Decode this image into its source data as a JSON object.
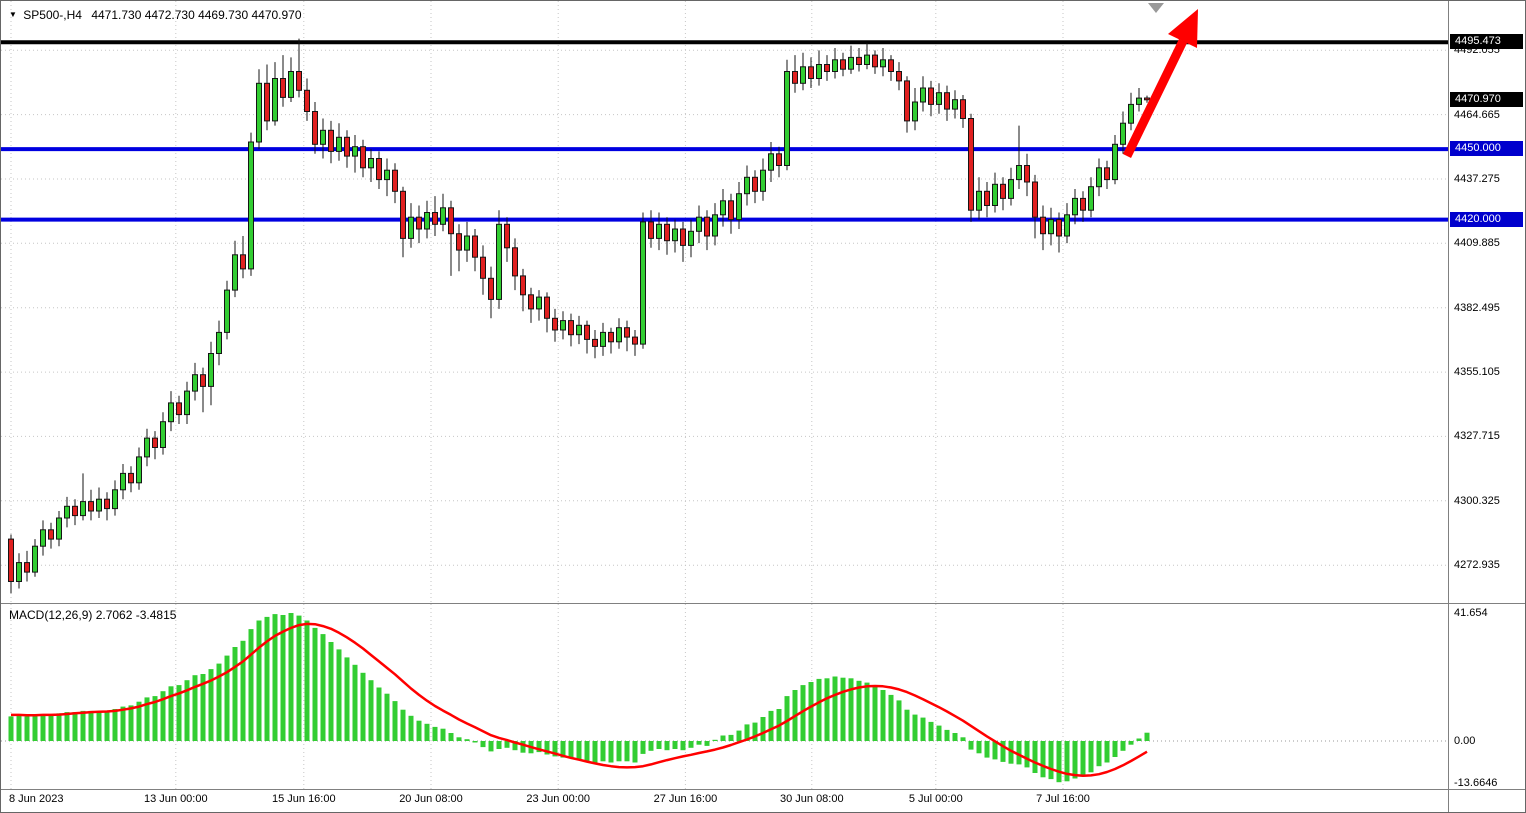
{
  "header": {
    "symbol_period": "SP500-,H4",
    "ohlc_text": "4471.730 4472.730 4469.730 4470.970",
    "open": 4471.73,
    "high": 4472.73,
    "low": 4469.73,
    "close": 4470.97
  },
  "macd_panel": {
    "label": "MACD(12,26,9) 2.7062 -3.4815",
    "indicator_name": "MACD(12,26,9)",
    "main_value": 2.7062,
    "signal_value": -3.4815
  },
  "colors": {
    "background": "#ffffff",
    "bull": "#32cd32",
    "bear": "#e02020",
    "candle_outline": "#151515",
    "grid": "#c6c6c6",
    "level_black": "#000000",
    "level_blue": "#0000e0",
    "badge_black_bg": "#000000",
    "badge_blue_bg": "#0000cd",
    "badge_text": "#ffffff",
    "histogram": "#32cd32",
    "signal": "#ff0000",
    "arrow": "#ff0000",
    "axis_text": "#000000",
    "separator": "#808080"
  },
  "chart_data": {
    "type": "candlestick",
    "symbol": "SP500-",
    "timeframe": "H4",
    "current_price": 4470.97,
    "x_axis": {
      "labels": [
        {
          "text": "8 Jun 2023",
          "index": 0
        },
        {
          "text": "13 Jun 00:00",
          "index": 20.6
        },
        {
          "text": "15 Jun 16:00",
          "index": 36.6
        },
        {
          "text": "20 Jun 08:00",
          "index": 52.5
        },
        {
          "text": "23 Jun 00:00",
          "index": 68.4
        },
        {
          "text": "27 Jun 16:00",
          "index": 84.3
        },
        {
          "text": "30 Jun 08:00",
          "index": 100.1
        },
        {
          "text": "5 Jul 00:00",
          "index": 115.6
        },
        {
          "text": "7 Jul 16:00",
          "index": 131.5
        }
      ]
    },
    "y_axis": {
      "grid_values": [
        4492.055,
        4464.665,
        4437.275,
        4409.885,
        4382.495,
        4355.105,
        4327.715,
        4300.325,
        4272.935
      ],
      "min": 4261,
      "max": 4497,
      "badges": [
        {
          "name": "price-badge-4495",
          "text": "4495.473",
          "price": 4495.473,
          "bg": "#000000"
        },
        {
          "name": "current-price-badge",
          "text": "4470.970",
          "price": 4470.97,
          "bg": "#000000"
        },
        {
          "name": "price-badge-4450",
          "text": "4450.000",
          "price": 4450.0,
          "bg": "#0000cd"
        },
        {
          "name": "price-badge-4420",
          "text": "4420.000",
          "price": 4420.0,
          "bg": "#0000cd"
        }
      ]
    },
    "levels": [
      {
        "name": "resistance-line-4495",
        "price": 4495.473,
        "color": "#000000",
        "thickness": 4
      },
      {
        "name": "support-line-4450",
        "price": 4450.0,
        "color": "#0000e0",
        "thickness": 4
      },
      {
        "name": "support-line-4420",
        "price": 4420.0,
        "color": "#0000e0",
        "thickness": 4
      }
    ],
    "annotations": [
      {
        "type": "arrow",
        "name": "trend-arrow",
        "color": "#ff0000",
        "direction": "up-right"
      },
      {
        "type": "marker",
        "name": "chart-shift-marker",
        "color": "#999999"
      }
    ],
    "candles_ohlc": [
      [
        4284,
        4286,
        4261,
        4266
      ],
      [
        4266,
        4278,
        4263,
        4274
      ],
      [
        4274,
        4279,
        4266,
        4270
      ],
      [
        4270,
        4284,
        4268,
        4281
      ],
      [
        4281,
        4292,
        4277,
        4288
      ],
      [
        4288,
        4291,
        4280,
        4284
      ],
      [
        4284,
        4296,
        4281,
        4293
      ],
      [
        4293,
        4302,
        4289,
        4298
      ],
      [
        4298,
        4301,
        4290,
        4294
      ],
      [
        4294,
        4312,
        4292,
        4300
      ],
      [
        4300,
        4305,
        4292,
        4296
      ],
      [
        4296,
        4306,
        4293,
        4301
      ],
      [
        4301,
        4304,
        4292,
        4297
      ],
      [
        4297,
        4309,
        4294,
        4305
      ],
      [
        4305,
        4316,
        4301,
        4312
      ],
      [
        4312,
        4315,
        4304,
        4308
      ],
      [
        4308,
        4323,
        4305,
        4319
      ],
      [
        4319,
        4331,
        4315,
        4327
      ],
      [
        4327,
        4330,
        4318,
        4323
      ],
      [
        4323,
        4338,
        4320,
        4334
      ],
      [
        4334,
        4347,
        4330,
        4342
      ],
      [
        4342,
        4345,
        4333,
        4337
      ],
      [
        4337,
        4351,
        4333,
        4347
      ],
      [
        4347,
        4359,
        4343,
        4354
      ],
      [
        4354,
        4357,
        4338,
        4349
      ],
      [
        4349,
        4368,
        4341,
        4363
      ],
      [
        4363,
        4377,
        4358,
        4372
      ],
      [
        4372,
        4394,
        4369,
        4390
      ],
      [
        4390,
        4411,
        4387,
        4405
      ],
      [
        4405,
        4413,
        4395,
        4399
      ],
      [
        4399,
        4457,
        4396,
        4453
      ],
      [
        4453,
        4484,
        4450,
        4478
      ],
      [
        4478,
        4486,
        4458,
        4462
      ],
      [
        4462,
        4487,
        4460,
        4480
      ],
      [
        4480,
        4490,
        4468,
        4472
      ],
      [
        4472,
        4489,
        4470,
        4483
      ],
      [
        4483,
        4497,
        4472,
        4475
      ],
      [
        4475,
        4480,
        4462,
        4466
      ],
      [
        4466,
        4470,
        4448,
        4452
      ],
      [
        4452,
        4463,
        4446,
        4458
      ],
      [
        4458,
        4462,
        4444,
        4449
      ],
      [
        4449,
        4461,
        4445,
        4455
      ],
      [
        4455,
        4458,
        4442,
        4447
      ],
      [
        4447,
        4456,
        4440,
        4451
      ],
      [
        4451,
        4454,
        4438,
        4442
      ],
      [
        4442,
        4450,
        4436,
        4446
      ],
      [
        4446,
        4449,
        4433,
        4437
      ],
      [
        4437,
        4446,
        4430,
        4441
      ],
      [
        4441,
        4444,
        4427,
        4432
      ],
      [
        4432,
        4434,
        4404,
        4412
      ],
      [
        4412,
        4427,
        4408,
        4421
      ],
      [
        4421,
        4426,
        4410,
        4416
      ],
      [
        4416,
        4428,
        4412,
        4423
      ],
      [
        4423,
        4430,
        4413,
        4418
      ],
      [
        4418,
        4431,
        4415,
        4425
      ],
      [
        4425,
        4428,
        4396,
        4414
      ],
      [
        4414,
        4418,
        4398,
        4407
      ],
      [
        4407,
        4419,
        4402,
        4413
      ],
      [
        4413,
        4416,
        4398,
        4404
      ],
      [
        4404,
        4409,
        4388,
        4395
      ],
      [
        4395,
        4400,
        4378,
        4386
      ],
      [
        4386,
        4424,
        4382,
        4418
      ],
      [
        4418,
        4421,
        4402,
        4408
      ],
      [
        4408,
        4412,
        4390,
        4396
      ],
      [
        4396,
        4399,
        4381,
        4388
      ],
      [
        4388,
        4391,
        4376,
        4382
      ],
      [
        4382,
        4390,
        4377,
        4387
      ],
      [
        4387,
        4389,
        4372,
        4378
      ],
      [
        4378,
        4382,
        4368,
        4373
      ],
      [
        4373,
        4381,
        4369,
        4377
      ],
      [
        4377,
        4380,
        4366,
        4371
      ],
      [
        4371,
        4379,
        4367,
        4375
      ],
      [
        4375,
        4377,
        4363,
        4369
      ],
      [
        4369,
        4373,
        4361,
        4366
      ],
      [
        4366,
        4376,
        4362,
        4372
      ],
      [
        4372,
        4374,
        4363,
        4368
      ],
      [
        4368,
        4378,
        4365,
        4374
      ],
      [
        4374,
        4377,
        4364,
        4370
      ],
      [
        4370,
        4373,
        4362,
        4367
      ],
      [
        4367,
        4423,
        4365,
        4419
      ],
      [
        4419,
        4424,
        4408,
        4412
      ],
      [
        4412,
        4423,
        4407,
        4418
      ],
      [
        4418,
        4421,
        4405,
        4411
      ],
      [
        4411,
        4420,
        4406,
        4416
      ],
      [
        4416,
        4419,
        4402,
        4409
      ],
      [
        4409,
        4420,
        4404,
        4415
      ],
      [
        4415,
        4426,
        4410,
        4421
      ],
      [
        4421,
        4424,
        4407,
        4413
      ],
      [
        4413,
        4427,
        4409,
        4422
      ],
      [
        4422,
        4433,
        4417,
        4428
      ],
      [
        4428,
        4431,
        4414,
        4420
      ],
      [
        4420,
        4436,
        4416,
        4431
      ],
      [
        4431,
        4443,
        4426,
        4438
      ],
      [
        4438,
        4441,
        4427,
        4432
      ],
      [
        4432,
        4446,
        4428,
        4441
      ],
      [
        4441,
        4453,
        4436,
        4448
      ],
      [
        4448,
        4451,
        4438,
        4443
      ],
      [
        4443,
        4488,
        4441,
        4483
      ],
      [
        4483,
        4490,
        4474,
        4478
      ],
      [
        4478,
        4491,
        4475,
        4485
      ],
      [
        4485,
        4489,
        4476,
        4480
      ],
      [
        4480,
        4492,
        4477,
        4486
      ],
      [
        4486,
        4490,
        4479,
        4483
      ],
      [
        4483,
        4493,
        4480,
        4488
      ],
      [
        4488,
        4491,
        4481,
        4484
      ],
      [
        4484,
        4494,
        4482,
        4489
      ],
      [
        4489,
        4493,
        4483,
        4486
      ],
      [
        4486,
        4495,
        4484,
        4490
      ],
      [
        4490,
        4492,
        4482,
        4485
      ],
      [
        4485,
        4493,
        4481,
        4488
      ],
      [
        4488,
        4490,
        4479,
        4483
      ],
      [
        4483,
        4487,
        4475,
        4479
      ],
      [
        4479,
        4481,
        4457,
        4462
      ],
      [
        4462,
        4476,
        4458,
        4470
      ],
      [
        4470,
        4481,
        4466,
        4476
      ],
      [
        4476,
        4479,
        4464,
        4469
      ],
      [
        4469,
        4478,
        4465,
        4474
      ],
      [
        4474,
        4477,
        4462,
        4467
      ],
      [
        4467,
        4475,
        4463,
        4471
      ],
      [
        4471,
        4473,
        4459,
        4463
      ],
      [
        4463,
        4465,
        4419,
        4424
      ],
      [
        4424,
        4438,
        4420,
        4432
      ],
      [
        4432,
        4436,
        4421,
        4426
      ],
      [
        4426,
        4440,
        4423,
        4435
      ],
      [
        4435,
        4438,
        4424,
        4429
      ],
      [
        4429,
        4442,
        4426,
        4437
      ],
      [
        4437,
        4460,
        4433,
        4443
      ],
      [
        4443,
        4448,
        4430,
        4436
      ],
      [
        4436,
        4439,
        4412,
        4421
      ],
      [
        4421,
        4426,
        4407,
        4414
      ],
      [
        4414,
        4425,
        4409,
        4420
      ],
      [
        4420,
        4423,
        4406,
        4413
      ],
      [
        4413,
        4427,
        4410,
        4422
      ],
      [
        4422,
        4433,
        4418,
        4429
      ],
      [
        4429,
        4432,
        4419,
        4424
      ],
      [
        4424,
        4438,
        4421,
        4434
      ],
      [
        4434,
        4446,
        4430,
        4442
      ],
      [
        4442,
        4445,
        4433,
        4437
      ],
      [
        4437,
        4456,
        4435,
        4452
      ],
      [
        4452,
        4466,
        4448,
        4461
      ],
      [
        4461,
        4474,
        4458,
        4469
      ],
      [
        4469,
        4476,
        4466,
        4471.7
      ],
      [
        4471.73,
        4472.73,
        4469.73,
        4470.97
      ]
    ],
    "indicator": {
      "type": "macd_histogram",
      "name": "MACD(12,26,9)",
      "main_value": 2.7062,
      "signal_value": -3.4815,
      "axis_labels": [
        {
          "label": "41.654",
          "value": 41.654
        },
        {
          "label": "0.00",
          "value": 0
        },
        {
          "label": "-13.6646",
          "value": -13.6646
        }
      ],
      "histogram": [
        8,
        8.2,
        8,
        8.3,
        8.6,
        8.6,
        9,
        9.4,
        9.4,
        9.8,
        9.8,
        9.6,
        9.9,
        10.4,
        11.2,
        11.6,
        12.8,
        14.2,
        14.6,
        16.2,
        17.8,
        18.2,
        19.8,
        21.4,
        21.8,
        23.4,
        25.2,
        27.8,
        30.6,
        32.6,
        36.4,
        39.2,
        40.4,
        41.3,
        41.0,
        41.654,
        40.8,
        39.2,
        36.8,
        34.8,
        32.2,
        29.8,
        27.2,
        24.8,
        22.2,
        19.8,
        17.4,
        15.4,
        13,
        10.2,
        8.2,
        6.6,
        5.6,
        4.6,
        4,
        2.6,
        1.2,
        0.6,
        -0.5,
        -2,
        -3.4,
        -2.6,
        -2.2,
        -3,
        -3.8,
        -4,
        -3.6,
        -4.4,
        -5,
        -5.4,
        -5.6,
        -6,
        -6.5,
        -7,
        -6.6,
        -7,
        -6.6,
        -6.6,
        -7,
        -4.2,
        -3.2,
        -2.6,
        -3,
        -2.6,
        -3,
        -2.2,
        -1.2,
        -1.6,
        0.4,
        1.8,
        2,
        3.4,
        5.4,
        6,
        7.8,
        9.8,
        10.4,
        14.6,
        16.6,
        18.2,
        19.2,
        20.2,
        20.4,
        21,
        20.6,
        20.4,
        19.6,
        19,
        17.6,
        16.6,
        15,
        13.2,
        10.2,
        8.6,
        7.6,
        6.2,
        5,
        3.6,
        2.6,
        1.2,
        -2.8,
        -4,
        -5.4,
        -6,
        -6.8,
        -7.4,
        -7.6,
        -8.6,
        -10.4,
        -11.8,
        -12.4,
        -13.4,
        -13.1,
        -12.2,
        -11.6,
        -10.2,
        -8.2,
        -7,
        -5.2,
        -3.2,
        -1.2,
        0.8,
        2.7062
      ],
      "signal": [
        8.5,
        8.5,
        8.4,
        8.4,
        8.5,
        8.5,
        8.6,
        8.8,
        9.0,
        9.2,
        9.4,
        9.5,
        9.6,
        9.8,
        10.2,
        10.6,
        11.2,
        12.0,
        12.7,
        13.6,
        14.6,
        15.5,
        16.5,
        17.6,
        18.6,
        19.7,
        21.0,
        22.4,
        24.1,
        25.9,
        28.1,
        30.4,
        32.4,
        34.2,
        35.6,
        36.8,
        37.7,
        38.1,
        38.0,
        37.4,
        36.5,
        35.2,
        33.7,
        32.0,
        30.1,
        28.0,
        25.9,
        23.8,
        21.7,
        19.4,
        17.1,
        15.0,
        13.1,
        11.4,
        9.9,
        8.5,
        7.0,
        5.7,
        4.5,
        3.2,
        1.9,
        1.0,
        0.3,
        -0.5,
        -1.2,
        -2.0,
        -2.7,
        -3.4,
        -4.1,
        -4.8,
        -5.5,
        -6.1,
        -6.7,
        -7.3,
        -7.8,
        -8.2,
        -8.5,
        -8.6,
        -8.5,
        -8.2,
        -7.6,
        -6.9,
        -6.2,
        -5.6,
        -5.0,
        -4.5,
        -3.9,
        -3.4,
        -2.8,
        -2.1,
        -1.3,
        -0.4,
        0.5,
        1.5,
        2.6,
        3.8,
        5.0,
        6.5,
        8.1,
        9.7,
        11.2,
        12.6,
        13.9,
        15.0,
        16.0,
        16.8,
        17.4,
        17.8,
        17.9,
        17.8,
        17.4,
        16.8,
        15.9,
        14.8,
        13.6,
        12.3,
        11.0,
        9.6,
        8.1,
        6.6,
        4.9,
        3.2,
        1.5,
        -0.1,
        -1.7,
        -3.2,
        -4.5,
        -5.8,
        -7.0,
        -8.1,
        -9.1,
        -10.0,
        -10.7,
        -11.1,
        -11.3,
        -11.2,
        -10.8,
        -10.1,
        -9.1,
        -7.9,
        -6.5,
        -5.0,
        -3.4815
      ]
    }
  }
}
